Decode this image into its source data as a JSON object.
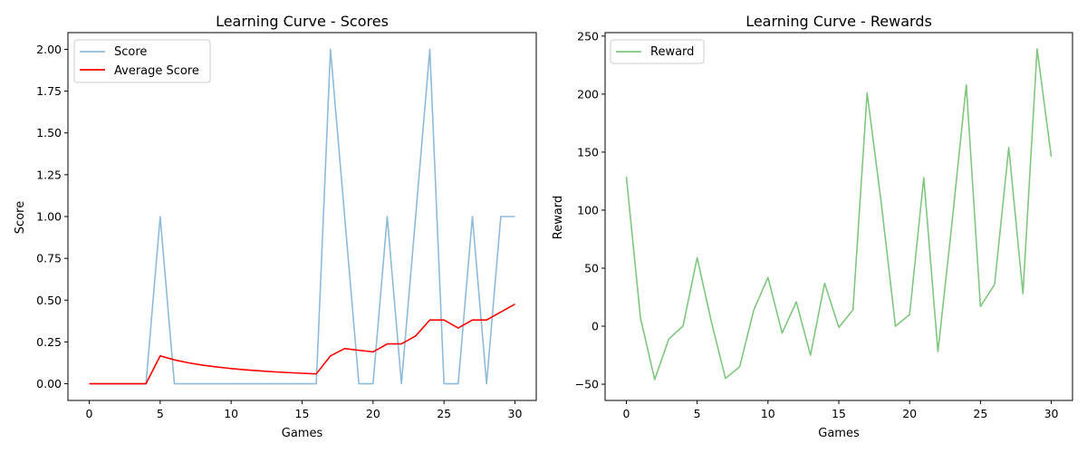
{
  "chart_data": [
    {
      "type": "line",
      "title": "Learning Curve - Scores",
      "xlabel": "Games",
      "ylabel": "Score",
      "xlim": [
        -1.5,
        31.5
      ],
      "ylim": [
        -0.1,
        2.1
      ],
      "xticks": [
        0,
        5,
        10,
        15,
        20,
        25,
        30
      ],
      "yticks": [
        0.0,
        0.25,
        0.5,
        0.75,
        1.0,
        1.25,
        1.5,
        1.75,
        2.0
      ],
      "ytick_labels": [
        "0.00",
        "0.25",
        "0.50",
        "0.75",
        "1.00",
        "1.25",
        "1.50",
        "1.75",
        "2.00"
      ],
      "legend_position": "top-left",
      "x": [
        0,
        1,
        2,
        3,
        4,
        5,
        6,
        7,
        8,
        9,
        10,
        11,
        12,
        13,
        14,
        15,
        16,
        17,
        18,
        19,
        20,
        21,
        22,
        23,
        24,
        25,
        26,
        27,
        28,
        29,
        30
      ],
      "series": [
        {
          "name": "Score",
          "color": "#1f77b4",
          "opacity": 0.5,
          "values": [
            0,
            0,
            0,
            0,
            0,
            1,
            0,
            0,
            0,
            0,
            0,
            0,
            0,
            0,
            0,
            0,
            0,
            2,
            1,
            0,
            0,
            1,
            0,
            1,
            2,
            0,
            0,
            1,
            0,
            1,
            1
          ]
        },
        {
          "name": "Average Score",
          "color": "#ff0000",
          "opacity": 1,
          "values": [
            0,
            0,
            0,
            0,
            0,
            0.1667,
            0.1429,
            0.125,
            0.1111,
            0.1,
            0.0909,
            0.0833,
            0.0769,
            0.0714,
            0.0667,
            0.0625,
            0.0588,
            0.1667,
            0.2105,
            0.2,
            0.1905,
            0.2381,
            0.2381,
            0.2857,
            0.381,
            0.381,
            0.3333,
            0.381,
            0.381,
            0.4286,
            0.4762
          ]
        }
      ]
    },
    {
      "type": "line",
      "title": "Learning Curve - Rewards",
      "xlabel": "Games",
      "ylabel": "Reward",
      "xlim": [
        -1.5,
        31.5
      ],
      "ylim": [
        -64,
        253
      ],
      "xticks": [
        0,
        5,
        10,
        15,
        20,
        25,
        30
      ],
      "yticks": [
        -50,
        0,
        50,
        100,
        150,
        200,
        250
      ],
      "ytick_labels": [
        "−50",
        "0",
        "50",
        "100",
        "150",
        "200",
        "250"
      ],
      "legend_position": "top-left",
      "x": [
        0,
        1,
        2,
        3,
        4,
        5,
        6,
        7,
        8,
        9,
        10,
        11,
        12,
        13,
        14,
        15,
        16,
        17,
        18,
        19,
        20,
        21,
        22,
        23,
        24,
        25,
        26,
        27,
        28,
        29,
        30
      ],
      "series": [
        {
          "name": "Reward",
          "color": "#2ca02c",
          "opacity": 0.6,
          "values": [
            129,
            7,
            -46,
            -11,
            0,
            59,
            4,
            -45,
            -35,
            14,
            42,
            -6,
            21,
            -25,
            37,
            -1,
            14,
            201,
            106,
            0,
            10,
            128,
            -22,
            90,
            208,
            17,
            36,
            154,
            28,
            239,
            146
          ]
        }
      ]
    }
  ]
}
